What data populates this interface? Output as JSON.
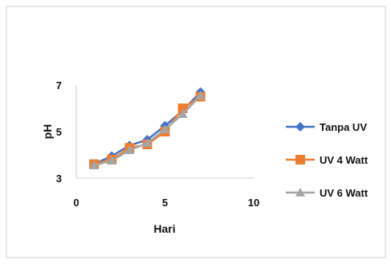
{
  "chart_data": {
    "type": "line",
    "title": "",
    "xlabel": "Hari",
    "ylabel": "pH",
    "xlim": [
      0,
      10
    ],
    "ylim": [
      3,
      7
    ],
    "xticks": [
      0,
      5,
      10
    ],
    "yticks": [
      3,
      5,
      7
    ],
    "grid": false,
    "legend_position": "right",
    "series": [
      {
        "name": "Tanpa UV",
        "color": "#4472C4",
        "marker": "diamond",
        "x": [
          1,
          2,
          3,
          4,
          5,
          6,
          7
        ],
        "y": [
          3.6,
          3.95,
          4.4,
          4.65,
          5.25,
          5.9,
          6.7
        ]
      },
      {
        "name": "UV 4 Watt",
        "color": "#ED7D31",
        "marker": "square",
        "x": [
          1,
          2,
          3,
          4,
          5,
          6,
          7
        ],
        "y": [
          3.6,
          3.8,
          4.3,
          4.45,
          5.0,
          6.0,
          6.5
        ]
      },
      {
        "name": "UV 6 Watt",
        "color": "#A5A5A5",
        "marker": "triangle",
        "x": [
          1,
          2,
          3,
          4,
          5,
          6,
          7
        ],
        "y": [
          3.55,
          3.75,
          4.2,
          4.5,
          5.1,
          5.75,
          6.55
        ]
      }
    ]
  }
}
